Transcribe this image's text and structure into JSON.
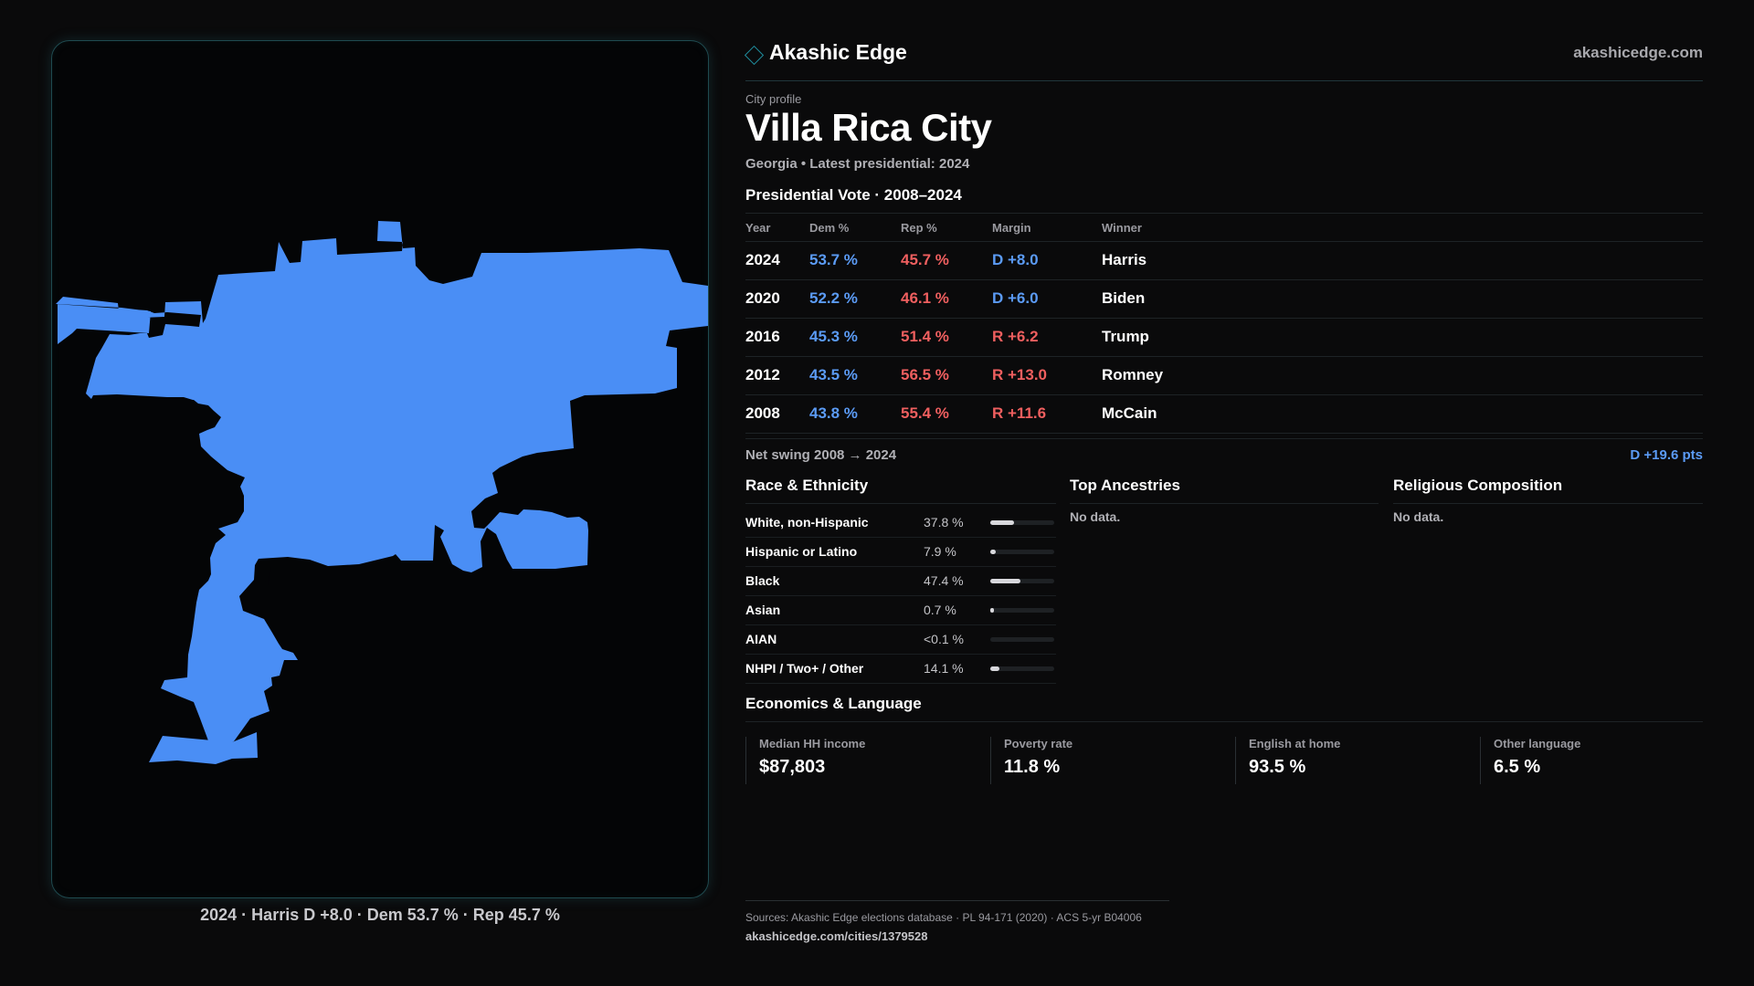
{
  "brand": {
    "name": "Akashic Edge",
    "site": "akashicedge.com",
    "accent_color": "#1f8fa0"
  },
  "map": {
    "caption": "2024 · Harris D +8.0 · Dem 53.7 % · Rep 45.7 %",
    "fill_color": "#4a8ef5"
  },
  "profile": {
    "kicker": "City profile",
    "title": "Villa Rica City",
    "subtitle": "Georgia • Latest presidential: 2024"
  },
  "vote": {
    "section_title": "Presidential Vote · 2008–2024",
    "headers": {
      "year": "Year",
      "dem": "Dem %",
      "rep": "Rep %",
      "margin": "Margin",
      "winner": "Winner"
    },
    "rows": [
      {
        "year": "2024",
        "dem": "53.7 %",
        "rep": "45.7 %",
        "margin": "D +8.0",
        "party": "D",
        "winner": "Harris"
      },
      {
        "year": "2020",
        "dem": "52.2 %",
        "rep": "46.1 %",
        "margin": "D +6.0",
        "party": "D",
        "winner": "Biden"
      },
      {
        "year": "2016",
        "dem": "45.3 %",
        "rep": "51.4 %",
        "margin": "R +6.2",
        "party": "R",
        "winner": "Trump"
      },
      {
        "year": "2012",
        "dem": "43.5 %",
        "rep": "56.5 %",
        "margin": "R +13.0",
        "party": "R",
        "winner": "Romney"
      },
      {
        "year": "2008",
        "dem": "43.8 %",
        "rep": "55.4 %",
        "margin": "R +11.6",
        "party": "R",
        "winner": "McCain"
      }
    ],
    "swing_label": "Net swing 2008 → 2024",
    "swing_value": "D +19.6 pts",
    "dem_color": "#5b9bf5",
    "rep_color": "#ef5f5f"
  },
  "race": {
    "title": "Race & Ethnicity",
    "rows": [
      {
        "label": "White, non-Hispanic",
        "value": "37.8 %",
        "share": 0.378
      },
      {
        "label": "Hispanic or Latino",
        "value": "7.9 %",
        "share": 0.079
      },
      {
        "label": "Black",
        "value": "47.4 %",
        "share": 0.474
      },
      {
        "label": "Asian",
        "value": "0.7 %",
        "share": 0.007
      },
      {
        "label": "AIAN",
        "value": "<0.1 %",
        "share": 0.0
      },
      {
        "label": "NHPI / Two+ / Other",
        "value": "14.1 %",
        "share": 0.141
      }
    ]
  },
  "ancestries": {
    "title": "Top Ancestries",
    "empty": "No data."
  },
  "religion": {
    "title": "Religious Composition",
    "empty": "No data."
  },
  "economics": {
    "title": "Economics & Language",
    "stats": [
      {
        "label": "Median HH income",
        "value": "$87,803"
      },
      {
        "label": "Poverty rate",
        "value": "11.8 %"
      },
      {
        "label": "English at home",
        "value": "93.5 %"
      },
      {
        "label": "Other language",
        "value": "6.5 %"
      }
    ]
  },
  "footer": {
    "sources": "Sources: Akashic Edge elections database · PL 94-171 (2020) · ACS 5-yr B04006",
    "url": "akashicedge.com/cities/1379528"
  }
}
